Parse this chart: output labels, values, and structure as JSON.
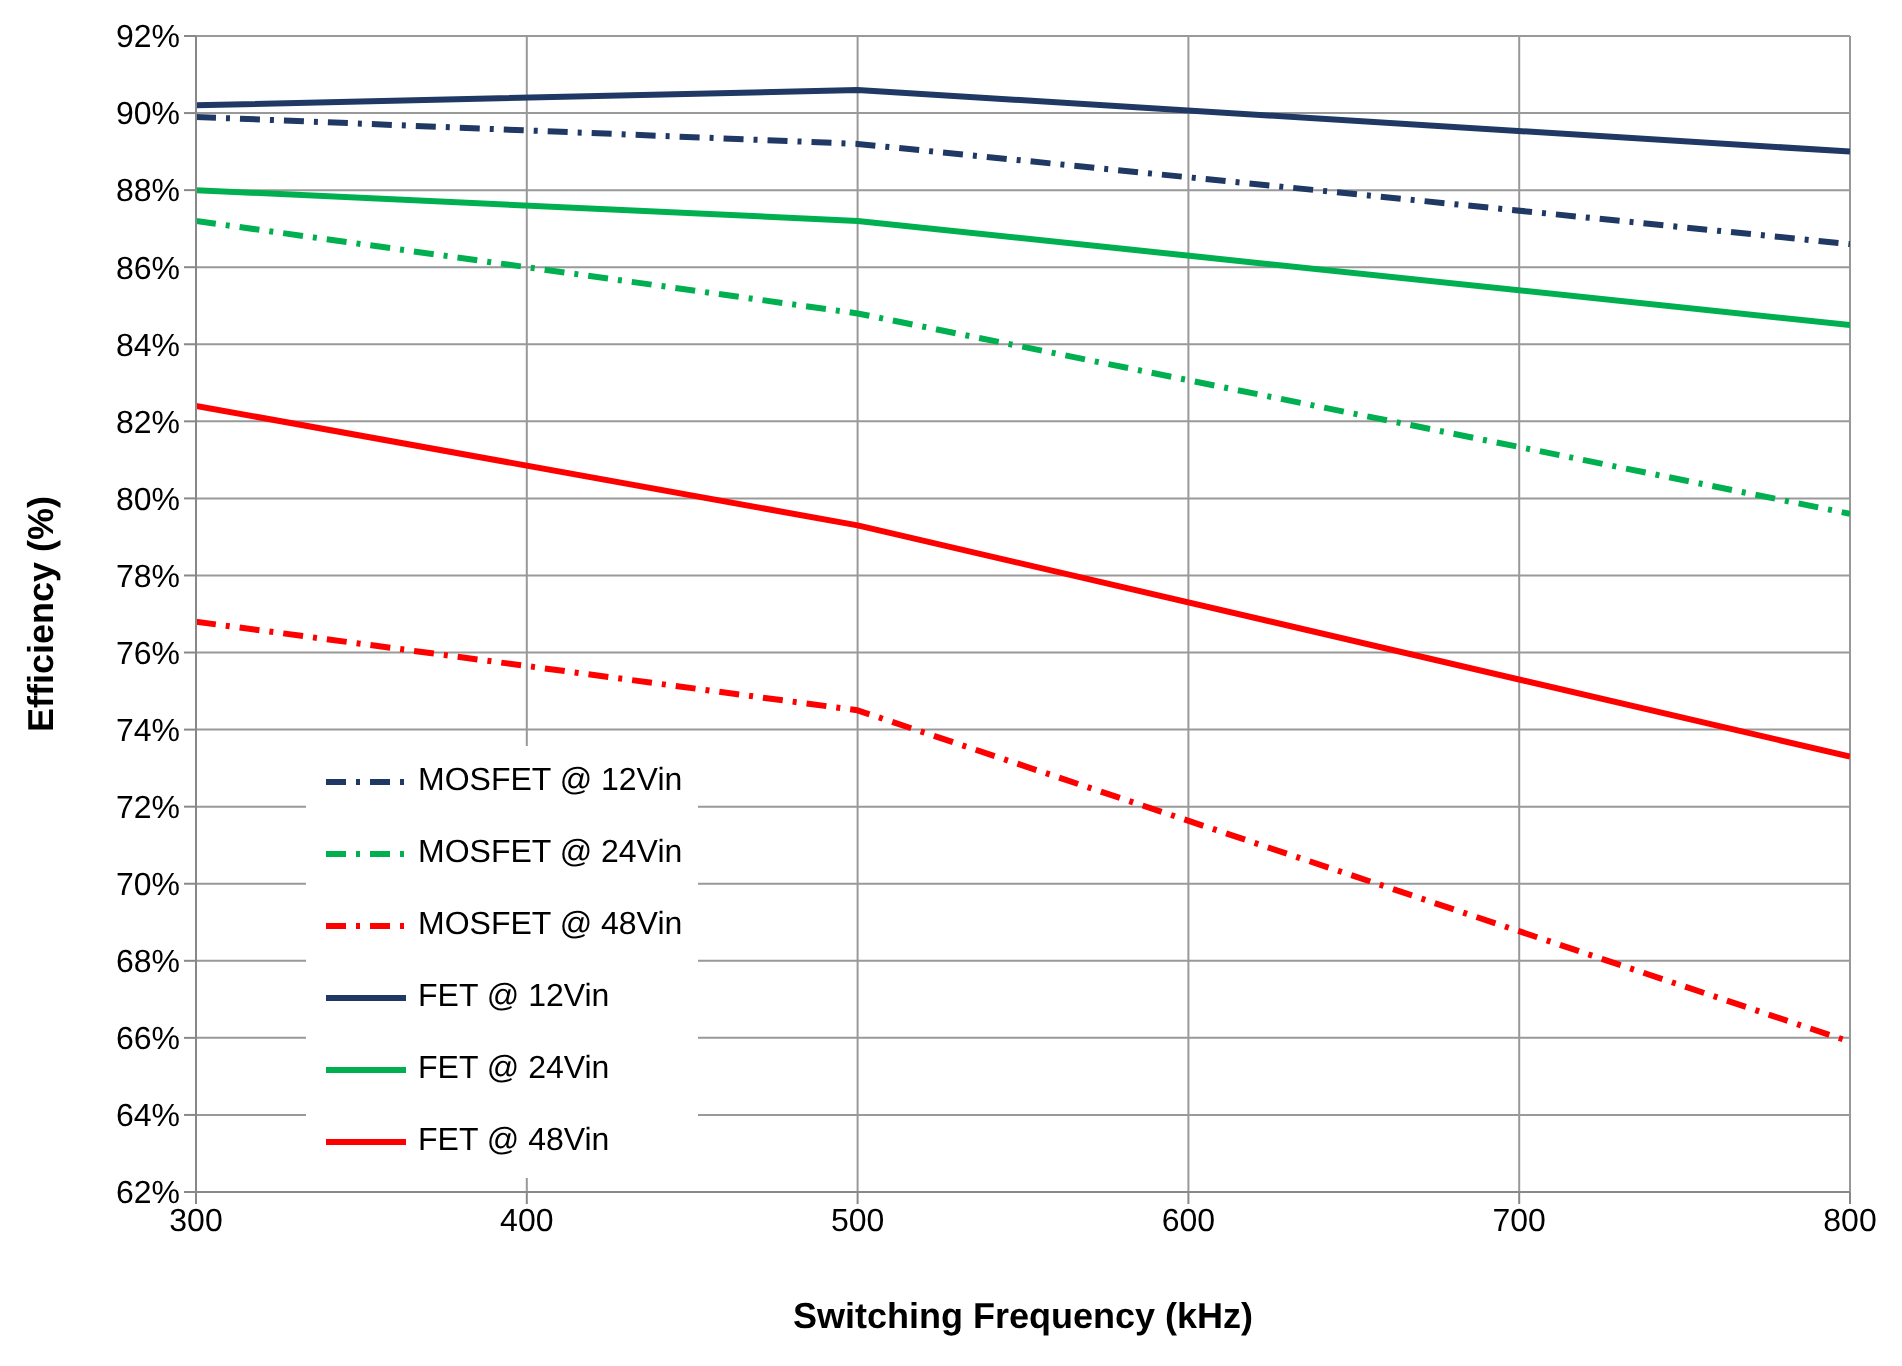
{
  "chart_data": {
    "type": "line",
    "xlabel": "Switching Frequency (kHz)",
    "ylabel": "Efficiency (%)",
    "x": [
      300,
      500,
      800
    ],
    "xlim": [
      300,
      800
    ],
    "xticks": [
      300,
      400,
      500,
      600,
      700,
      800
    ],
    "ylim": [
      62,
      92
    ],
    "yticks": [
      {
        "value": 62,
        "label": "62%"
      },
      {
        "value": 64,
        "label": "64%"
      },
      {
        "value": 66,
        "label": "66%"
      },
      {
        "value": 68,
        "label": "68%"
      },
      {
        "value": 70,
        "label": "70%"
      },
      {
        "value": 72,
        "label": "72%"
      },
      {
        "value": 74,
        "label": "74%"
      },
      {
        "value": 76,
        "label": "76%"
      },
      {
        "value": 78,
        "label": "78%"
      },
      {
        "value": 80,
        "label": "80%"
      },
      {
        "value": 82,
        "label": "82%"
      },
      {
        "value": 84,
        "label": "84%"
      },
      {
        "value": 86,
        "label": "86%"
      },
      {
        "value": 88,
        "label": "88%"
      },
      {
        "value": 90,
        "label": "90%"
      },
      {
        "value": 92,
        "label": "92%"
      }
    ],
    "grid": true,
    "legend": "bottom left",
    "marker": "none",
    "series": [
      {
        "name": "MOSFET @ 12Vin",
        "color": "#1f3864",
        "line_style": "dashed",
        "values": [
          89.9,
          89.2,
          86.6
        ]
      },
      {
        "name": "MOSFET @ 24Vin",
        "color": "#00b050",
        "line_style": "dashed",
        "values": [
          87.2,
          84.8,
          79.6
        ]
      },
      {
        "name": "MOSFET @ 48Vin",
        "color": "#ff0000",
        "line_style": "dashed",
        "values": [
          76.8,
          74.5,
          65.9
        ]
      },
      {
        "name": "FET @ 12Vin",
        "color": "#1f3864",
        "line_style": "solid",
        "values": [
          90.2,
          90.6,
          89.0
        ]
      },
      {
        "name": "FET @ 24Vin",
        "color": "#00b050",
        "line_style": "solid",
        "values": [
          88.0,
          87.2,
          84.5
        ]
      },
      {
        "name": "FET @ 48Vin",
        "color": "#ff0000",
        "line_style": "solid",
        "values": [
          82.4,
          79.3,
          73.3
        ]
      }
    ]
  }
}
